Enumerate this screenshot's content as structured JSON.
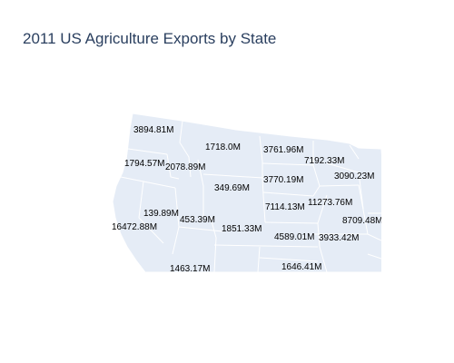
{
  "title": "2011 US Agriculture Exports by State",
  "colors": {
    "land": "#e5ecf6",
    "border": "#ffffff",
    "title": "#2a3f5f",
    "label": "#000000"
  },
  "chart_data": {
    "type": "choropleth",
    "scope": "usa",
    "title": "2011 US Agriculture Exports by State",
    "unit_suffix": "M",
    "regions": [
      {
        "label": "3894.81M"
      },
      {
        "label": "1718.0M"
      },
      {
        "label": "3761.96M"
      },
      {
        "label": "7192.33M"
      },
      {
        "label": "1794.57M"
      },
      {
        "label": "2078.89M"
      },
      {
        "label": "3090.23M"
      },
      {
        "label": "3770.19M"
      },
      {
        "label": "349.69M"
      },
      {
        "label": "11273.76M"
      },
      {
        "label": "7114.13M"
      },
      {
        "label": "139.89M"
      },
      {
        "label": "453.39M"
      },
      {
        "label": "16472.88M"
      },
      {
        "label": "1851.33M"
      },
      {
        "label": "8709.48M"
      },
      {
        "label": "4589.01M"
      },
      {
        "label": "3933.42M"
      },
      {
        "label": "1463.17M"
      },
      {
        "label": "1646.41M"
      }
    ]
  }
}
